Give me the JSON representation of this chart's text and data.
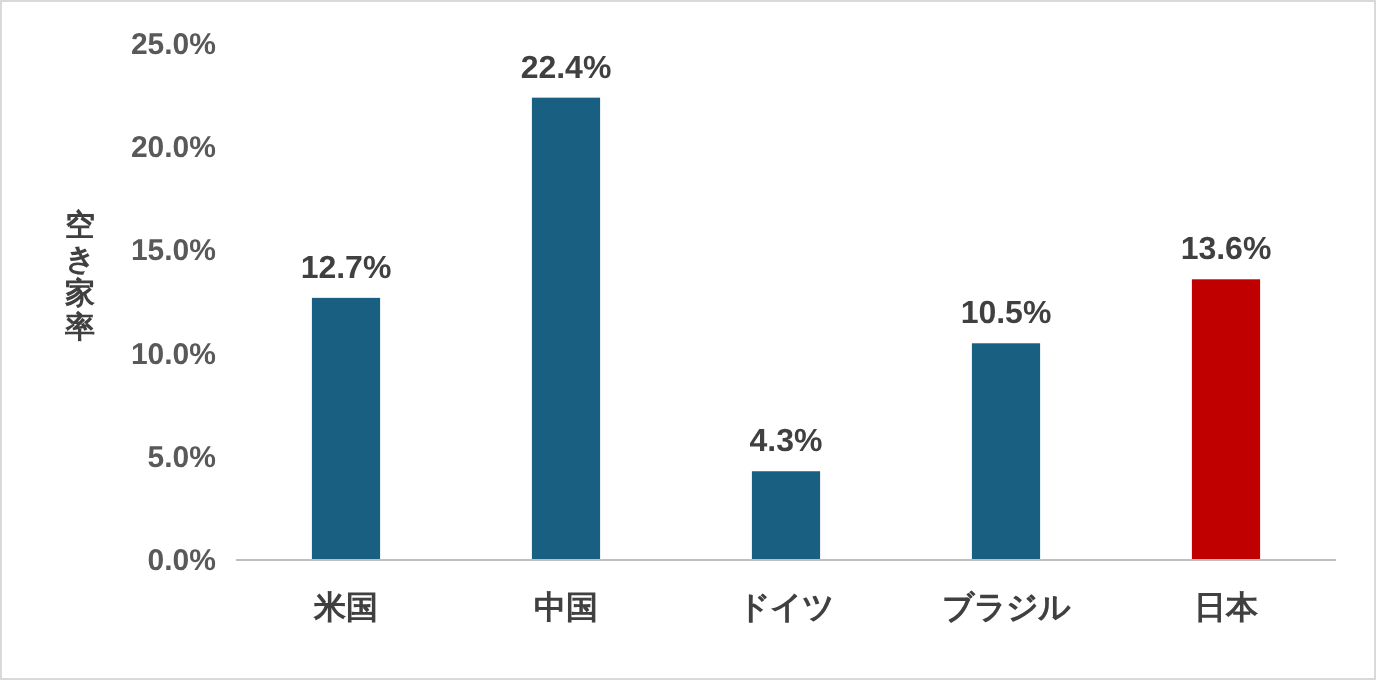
{
  "chart_data": {
    "type": "bar",
    "ylabel": "空き家率",
    "categories": [
      "米国",
      "中国",
      "ドイツ",
      "ブラジル",
      "日本"
    ],
    "values": [
      12.7,
      22.4,
      4.3,
      10.5,
      13.6
    ],
    "colors": [
      "#185f82",
      "#185f82",
      "#185f82",
      "#185f82",
      "#c00000"
    ],
    "value_labels": [
      "12.7%",
      "22.4%",
      "4.3%",
      "10.5%",
      "13.6%"
    ],
    "ylim": [
      0,
      25
    ],
    "yticks": [
      {
        "value": 0,
        "label": "0.0%"
      },
      {
        "value": 5,
        "label": "5.0%"
      },
      {
        "value": 10,
        "label": "10.0%"
      },
      {
        "value": 15,
        "label": "15.0%"
      },
      {
        "value": 20,
        "label": "20.0%"
      },
      {
        "value": 25,
        "label": "25.0%"
      }
    ]
  }
}
